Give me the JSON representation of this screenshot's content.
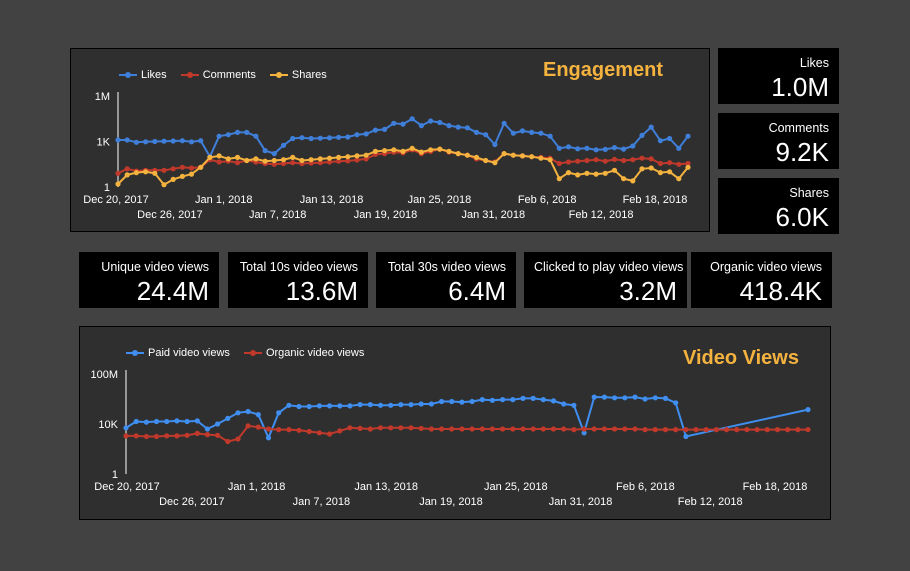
{
  "engagement": {
    "title": "Engagement",
    "chart_data": {
      "type": "line",
      "title": "Engagement",
      "y_scale": "log10",
      "y_ticks": [
        "1",
        "1K",
        "1M"
      ],
      "x_tick_labels_upper": [
        "Dec 20, 2017",
        "Jan 1, 2018",
        "Jan 13, 2018",
        "Jan 25, 2018",
        "Feb 6, 2018",
        "Feb 18, 2018"
      ],
      "x_tick_labels_lower": [
        "Dec 26, 2017",
        "Jan 7, 2018",
        "Jan 19, 2018",
        "Jan 31, 2018",
        "Feb 12, 2018"
      ],
      "series": [
        {
          "name": "Likes",
          "color": "#3f7fd9",
          "log_values": [
            3.1,
            3.1,
            2.95,
            2.98,
            3.0,
            3.02,
            3.03,
            3.05,
            2.98,
            3.05,
            2.0,
            3.35,
            3.45,
            3.6,
            3.6,
            3.35,
            2.4,
            2.2,
            2.75,
            3.2,
            3.25,
            3.2,
            3.22,
            3.24,
            3.28,
            3.3,
            3.45,
            3.5,
            3.75,
            3.8,
            4.2,
            4.15,
            4.5,
            4.05,
            4.35,
            4.25,
            4.05,
            3.95,
            3.9,
            3.6,
            3.45,
            2.8,
            4.2,
            3.55,
            3.7,
            3.6,
            3.55,
            3.35,
            2.55,
            2.65,
            2.52,
            2.55,
            2.45,
            2.48,
            2.6,
            2.5,
            2.7,
            3.4,
            3.95,
            3.05,
            3.2,
            2.55,
            3.35
          ]
        },
        {
          "name": "Comments",
          "color": "#c0392b",
          "log_values": [
            0.9,
            1.2,
            1.05,
            1.1,
            1.1,
            1.1,
            1.2,
            1.3,
            1.25,
            1.3,
            1.8,
            1.65,
            1.7,
            1.6,
            1.75,
            1.65,
            1.55,
            1.5,
            1.55,
            1.6,
            1.55,
            1.58,
            1.6,
            1.65,
            1.7,
            1.72,
            1.78,
            1.85,
            2.15,
            2.2,
            2.3,
            2.25,
            2.45,
            2.2,
            2.35,
            2.5,
            2.3,
            2.2,
            2.1,
            1.85,
            1.75,
            1.65,
            2.2,
            2.1,
            2.05,
            2.0,
            1.95,
            1.9,
            1.55,
            1.65,
            1.7,
            1.75,
            1.8,
            1.7,
            1.82,
            1.75,
            1.8,
            1.9,
            1.85,
            1.55,
            1.6,
            1.5,
            1.55
          ]
        },
        {
          "name": "Shares",
          "color": "#f4b23f",
          "log_values": [
            0.2,
            0.8,
            0.95,
            1.0,
            0.9,
            0.15,
            0.5,
            0.7,
            0.85,
            1.3,
            1.95,
            2.05,
            1.85,
            1.95,
            1.75,
            1.85,
            1.7,
            1.75,
            1.8,
            1.95,
            1.75,
            1.8,
            1.85,
            1.9,
            1.95,
            2.0,
            2.05,
            2.1,
            2.35,
            2.4,
            2.45,
            2.35,
            2.55,
            2.3,
            2.45,
            2.5,
            2.35,
            2.2,
            2.1,
            1.95,
            1.75,
            1.6,
            2.2,
            2.1,
            2.05,
            2.0,
            1.9,
            1.8,
            0.55,
            0.95,
            0.8,
            0.9,
            0.85,
            0.9,
            1.1,
            0.55,
            0.4,
            1.2,
            1.25,
            0.95,
            1.0,
            0.55,
            1.3
          ]
        }
      ]
    }
  },
  "stat_cards_right": [
    {
      "label": "Likes",
      "value": "1.0M"
    },
    {
      "label": "Comments",
      "value": "9.2K"
    },
    {
      "label": "Shares",
      "value": "6.0K"
    }
  ],
  "stat_cards_row": [
    {
      "label": "Unique video views",
      "value": "24.4M"
    },
    {
      "label": "Total 10s video views",
      "value": "13.6M"
    },
    {
      "label": "Total 30s video views",
      "value": "6.4M"
    },
    {
      "label": "Clicked to play video views",
      "value": "3.2M"
    },
    {
      "label": "Organic video views",
      "value": "418.4K"
    }
  ],
  "video_views": {
    "title": "Video Views",
    "chart_data": {
      "type": "line",
      "title": "Video Views",
      "y_scale": "log10",
      "y_ticks": [
        "1",
        "10K",
        "100M"
      ],
      "x_tick_labels_upper": [
        "Dec 20, 2017",
        "Jan 1, 2018",
        "Jan 13, 2018",
        "Jan 25, 2018",
        "Feb 6, 2018",
        "Feb 18, 2018"
      ],
      "x_tick_labels_lower": [
        "Dec 26, 2017",
        "Jan 7, 2018",
        "Jan 19, 2018",
        "Jan 31, 2018",
        "Feb 12, 2018"
      ],
      "series": [
        {
          "name": "Paid video views",
          "color": "#3f8ef0",
          "points": [
            [
              0,
              3.7
            ],
            [
              1,
              4.2
            ],
            [
              2,
              4.15
            ],
            [
              3,
              4.2
            ],
            [
              4,
              4.2
            ],
            [
              5,
              4.25
            ],
            [
              6,
              4.2
            ],
            [
              7,
              4.25
            ],
            [
              8,
              3.6
            ],
            [
              9,
              4.0
            ],
            [
              10,
              4.45
            ],
            [
              11,
              4.9
            ],
            [
              12,
              5.0
            ],
            [
              13,
              4.75
            ],
            [
              14,
              2.9
            ],
            [
              15,
              4.9
            ],
            [
              16,
              5.5
            ],
            [
              17,
              5.4
            ],
            [
              18,
              5.4
            ],
            [
              19,
              5.45
            ],
            [
              20,
              5.45
            ],
            [
              21,
              5.45
            ],
            [
              22,
              5.45
            ],
            [
              23,
              5.55
            ],
            [
              24,
              5.55
            ],
            [
              25,
              5.5
            ],
            [
              26,
              5.5
            ],
            [
              27,
              5.55
            ],
            [
              28,
              5.55
            ],
            [
              29,
              5.6
            ],
            [
              30,
              5.6
            ],
            [
              31,
              5.8
            ],
            [
              32,
              5.8
            ],
            [
              33,
              5.75
            ],
            [
              34,
              5.8
            ],
            [
              35,
              5.95
            ],
            [
              36,
              5.9
            ],
            [
              37,
              5.95
            ],
            [
              38,
              5.95
            ],
            [
              39,
              6.05
            ],
            [
              40,
              6.05
            ],
            [
              41,
              5.95
            ],
            [
              42,
              5.85
            ],
            [
              43,
              5.6
            ],
            [
              44,
              5.5
            ],
            [
              45,
              3.3
            ],
            [
              46,
              6.15
            ],
            [
              47,
              6.15
            ],
            [
              48,
              6.1
            ],
            [
              49,
              6.1
            ],
            [
              50,
              6.15
            ],
            [
              51,
              6.0
            ],
            [
              52,
              6.1
            ],
            [
              53,
              6.05
            ],
            [
              54,
              5.7
            ],
            [
              55,
              3.0
            ],
            [
              67,
              5.15
            ]
          ]
        },
        {
          "name": "Organic video views",
          "color": "#c0392b",
          "points": [
            [
              0,
              3.05
            ],
            [
              1,
              3.05
            ],
            [
              2,
              3.0
            ],
            [
              3,
              3.0
            ],
            [
              4,
              3.05
            ],
            [
              5,
              3.05
            ],
            [
              6,
              3.1
            ],
            [
              7,
              3.25
            ],
            [
              8,
              3.15
            ],
            [
              9,
              3.1
            ],
            [
              10,
              2.6
            ],
            [
              11,
              2.8
            ],
            [
              12,
              3.85
            ],
            [
              13,
              3.75
            ],
            [
              14,
              3.6
            ],
            [
              15,
              3.55
            ],
            [
              16,
              3.55
            ],
            [
              17,
              3.5
            ],
            [
              18,
              3.4
            ],
            [
              19,
              3.3
            ],
            [
              20,
              3.2
            ],
            [
              21,
              3.45
            ],
            [
              22,
              3.7
            ],
            [
              23,
              3.65
            ],
            [
              24,
              3.6
            ],
            [
              25,
              3.7
            ],
            [
              26,
              3.7
            ],
            [
              27,
              3.7
            ],
            [
              28,
              3.7
            ],
            [
              29,
              3.65
            ],
            [
              30,
              3.6
            ],
            [
              31,
              3.6
            ],
            [
              32,
              3.6
            ],
            [
              33,
              3.6
            ],
            [
              34,
              3.6
            ],
            [
              35,
              3.6
            ],
            [
              36,
              3.6
            ],
            [
              37,
              3.6
            ],
            [
              38,
              3.6
            ],
            [
              39,
              3.6
            ],
            [
              40,
              3.6
            ],
            [
              41,
              3.6
            ],
            [
              42,
              3.6
            ],
            [
              43,
              3.6
            ],
            [
              44,
              3.55
            ],
            [
              45,
              3.6
            ],
            [
              46,
              3.6
            ],
            [
              47,
              3.6
            ],
            [
              48,
              3.6
            ],
            [
              49,
              3.6
            ],
            [
              50,
              3.6
            ],
            [
              51,
              3.55
            ],
            [
              52,
              3.55
            ],
            [
              53,
              3.55
            ],
            [
              54,
              3.55
            ],
            [
              55,
              3.55
            ],
            [
              56,
              3.55
            ],
            [
              57,
              3.55
            ],
            [
              58,
              3.55
            ],
            [
              59,
              3.55
            ],
            [
              60,
              3.55
            ],
            [
              61,
              3.55
            ],
            [
              62,
              3.55
            ],
            [
              63,
              3.55
            ],
            [
              64,
              3.55
            ],
            [
              65,
              3.55
            ],
            [
              66,
              3.55
            ],
            [
              67,
              3.55
            ]
          ]
        }
      ]
    }
  },
  "colors": {
    "axis": "#ffffff",
    "grid": "#5a5a5a",
    "title_accent": "#f4b23f"
  }
}
